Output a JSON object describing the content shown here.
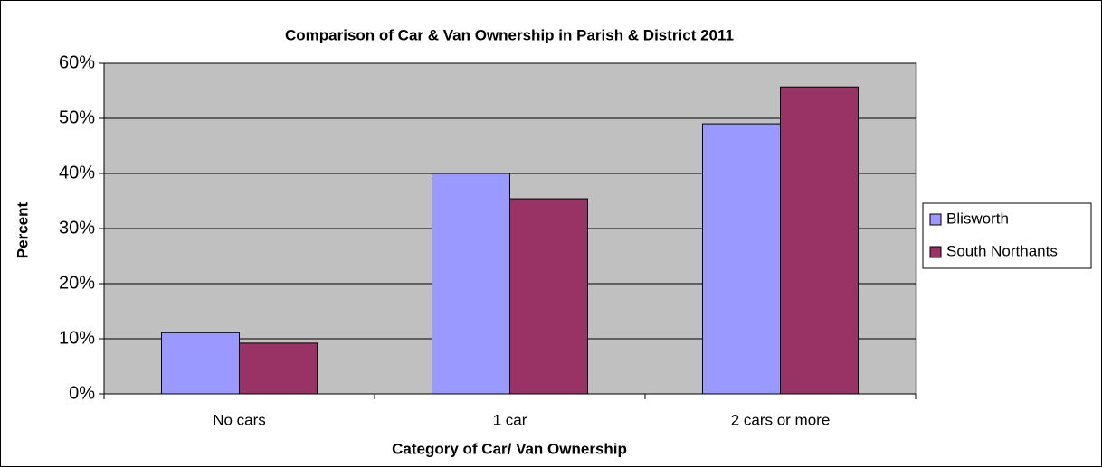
{
  "chart_data": {
    "type": "bar",
    "title": "Comparison of Car & Van Ownership in Parish & District 2011",
    "x_label": "Category of Car/ Van Ownership",
    "y_label": "Percent",
    "categories": [
      "No cars",
      "1 car",
      "2 cars or more"
    ],
    "series": [
      {
        "name": "Blisworth",
        "color": "#9999ff",
        "values": [
          11.1,
          40.0,
          49.0
        ]
      },
      {
        "name": "South Northants",
        "color": "#993366",
        "values": [
          9.2,
          35.4,
          55.7
        ]
      }
    ],
    "ylim": [
      0,
      60
    ],
    "yticks": [
      {
        "value": 0,
        "label": "0%"
      },
      {
        "value": 10,
        "label": "10%"
      },
      {
        "value": 20,
        "label": "20%"
      },
      {
        "value": 30,
        "label": "30%"
      },
      {
        "value": 40,
        "label": "40%"
      },
      {
        "value": 50,
        "label": "50%"
      },
      {
        "value": 60,
        "label": "60%"
      }
    ],
    "grid": true,
    "legend": "right"
  }
}
